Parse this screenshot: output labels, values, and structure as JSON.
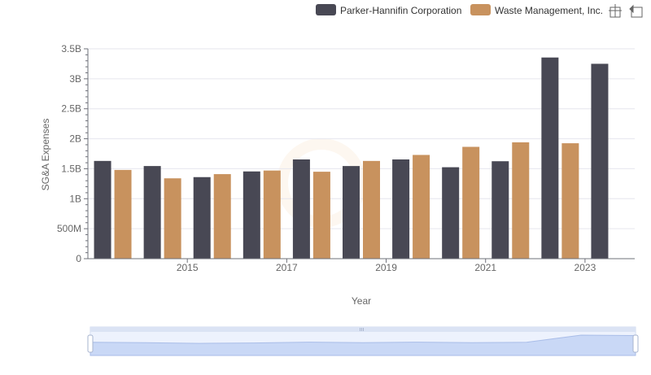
{
  "chart_data": {
    "type": "bar",
    "xlabel": "Year",
    "ylabel": "SG&A Expenses",
    "ylim": [
      0,
      3500000000
    ],
    "yticks": [
      {
        "value": 0,
        "label": "0"
      },
      {
        "value": 500000000,
        "label": "500M"
      },
      {
        "value": 1000000000,
        "label": "1B"
      },
      {
        "value": 1500000000,
        "label": "1.5B"
      },
      {
        "value": 2000000000,
        "label": "2B"
      },
      {
        "value": 2500000000,
        "label": "2.5B"
      },
      {
        "value": 3000000000,
        "label": "3B"
      },
      {
        "value": 3500000000,
        "label": "3.5B"
      }
    ],
    "categories": [
      2014,
      2015,
      2016,
      2017,
      2018,
      2019,
      2020,
      2021,
      2022,
      2023,
      2024
    ],
    "xtick_labels": [
      {
        "year": 2015,
        "label": "2015"
      },
      {
        "year": 2017,
        "label": "2017"
      },
      {
        "year": 2019,
        "label": "2019"
      },
      {
        "year": 2021,
        "label": "2021"
      },
      {
        "year": 2023,
        "label": "2023"
      }
    ],
    "series": [
      {
        "name": "Parker-Hannifin Corporation",
        "color": "#484854",
        "values": [
          1630000000,
          1545000000,
          1360000000,
          1455000000,
          1655000000,
          1545000000,
          1655000000,
          1525000000,
          1625000000,
          3355000000,
          3250000000
        ]
      },
      {
        "name": "Waste Management, Inc.",
        "color": "#c8925e",
        "values": [
          1480000000,
          1340000000,
          1410000000,
          1470000000,
          1450000000,
          1630000000,
          1730000000,
          1865000000,
          1940000000,
          1925000000,
          null
        ]
      }
    ],
    "grid": true,
    "legend_position": "top-right"
  },
  "toolbar": {
    "icons": [
      "zoom-select-icon",
      "zoom-reset-icon"
    ]
  },
  "colors": {
    "grid": "#e6e6ee",
    "axis": "#6e7079",
    "slider_fill": "#dbe5fb",
    "slider_border": "#c9d3e8"
  }
}
